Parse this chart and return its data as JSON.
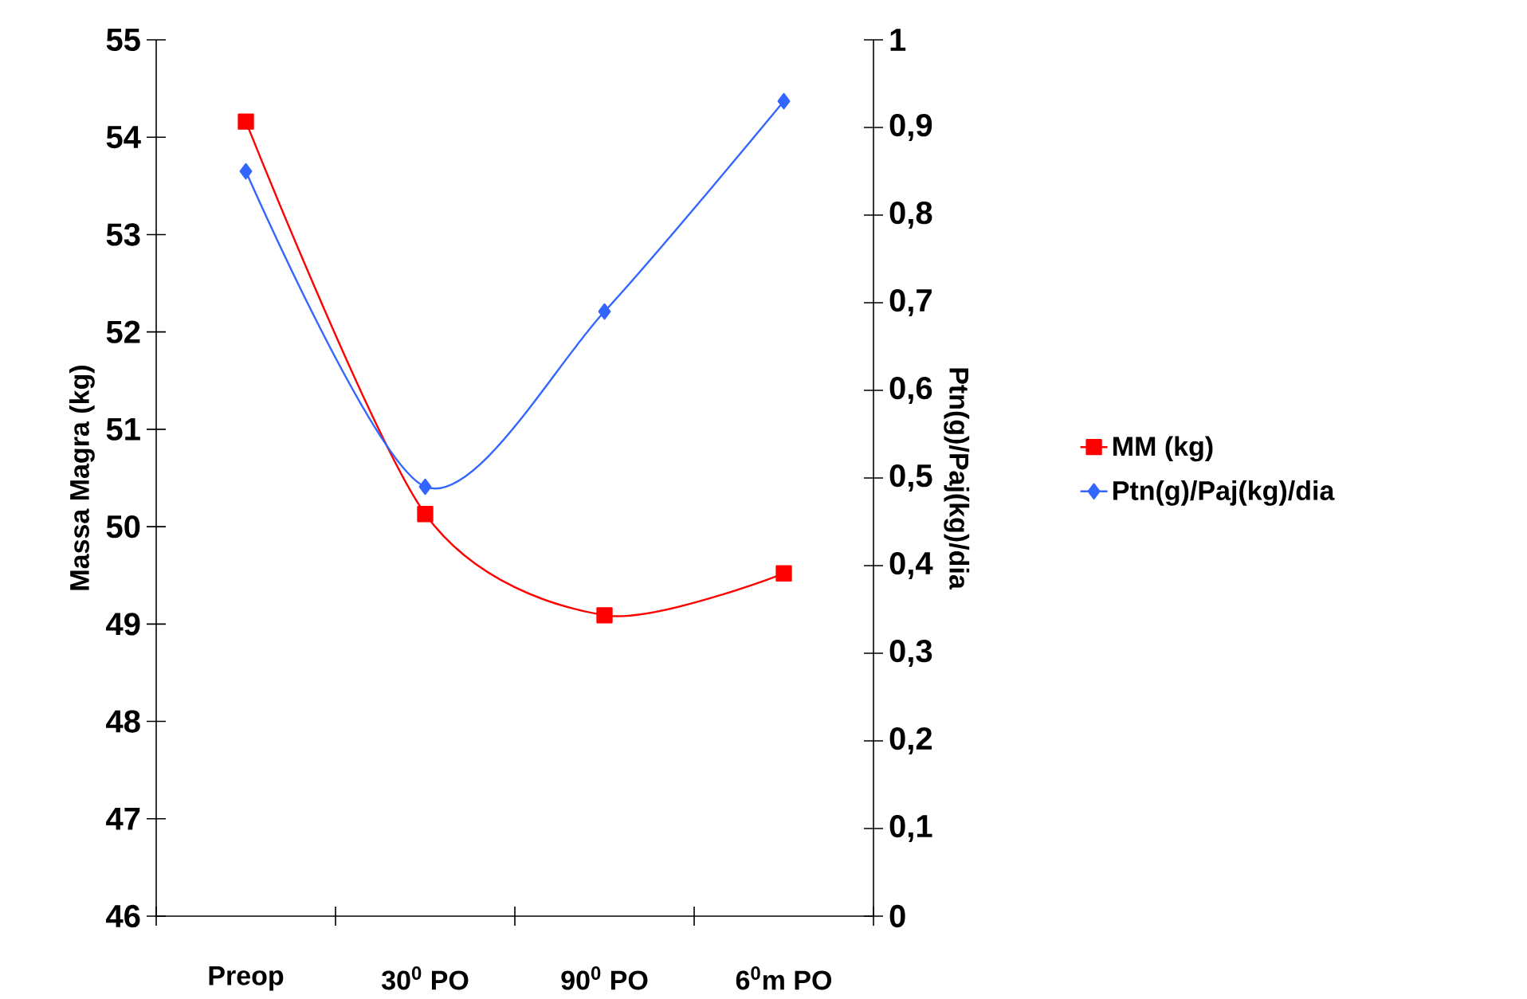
{
  "chart_data": {
    "type": "line",
    "ylabel": "Massa Magra (kg)",
    "y2label": "Ptn(g)/Paj(kg)/dia",
    "categories": [
      "Preop",
      "30$^{0}$ PO",
      "90$^{0}$ PO",
      "6$^{0}$m PO"
    ],
    "series": [
      {
        "name": "MM (kg)",
        "color": "#ff0000",
        "marker": "square",
        "values": [
          54.16,
          50.13,
          49.09,
          49.52
        ]
      },
      {
        "name": "Ptn(g)/Paj(kg)/dia",
        "color": "#3366ff",
        "marker": "diamond",
        "axis": "y2",
        "values": [
          0.85,
          0.49,
          0.69,
          0.93
        ]
      }
    ],
    "ylim": [
      46,
      55
    ],
    "yticks": [
      46,
      47,
      48,
      49,
      50,
      51,
      52,
      53,
      54,
      55
    ],
    "y2lim": [
      0,
      1
    ],
    "y2ticks": [
      0,
      {
        "value": 0.1,
        "label": "0,1"
      },
      {
        "value": 0.2,
        "label": "0,2"
      },
      {
        "value": 0.3,
        "label": "0,3"
      },
      {
        "value": 0.4,
        "label": "0,4"
      },
      {
        "value": 0.5,
        "label": "0,5"
      },
      {
        "value": 0.6,
        "label": "0,6"
      },
      {
        "value": 0.7,
        "label": "0,7"
      },
      {
        "value": 0.8,
        "label": "0,8"
      },
      {
        "value": 0.9,
        "label": "0,9"
      },
      1
    ],
    "legend": "right"
  }
}
